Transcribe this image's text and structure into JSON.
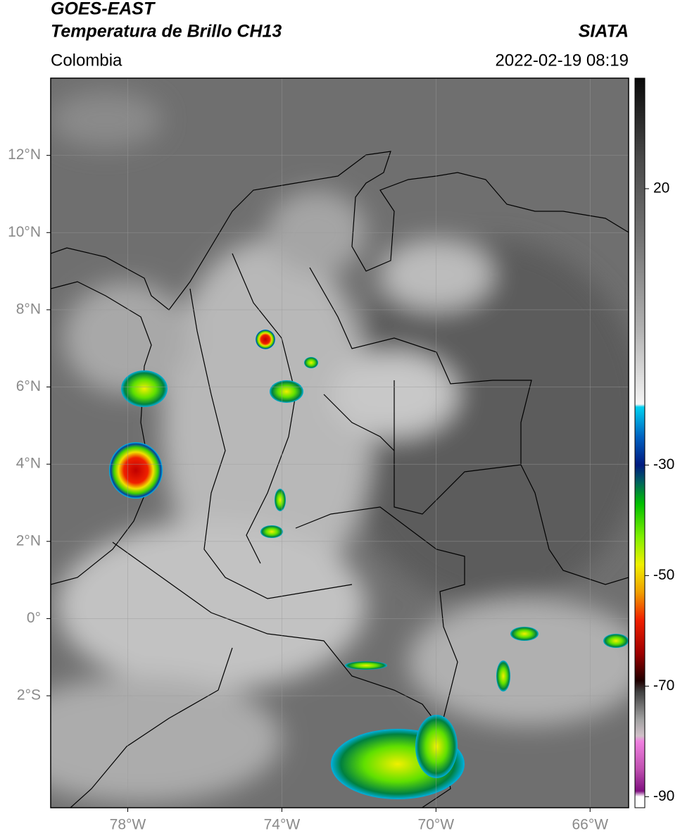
{
  "header": {
    "title": "GOES-EAST",
    "subtitle": "Temperatura de Brillo CH13",
    "source": "SIATA",
    "region": "Colombia",
    "timestamp": "2022-02-19 08:19"
  },
  "map": {
    "xlim": [
      -80,
      -65
    ],
    "ylim": [
      -4.9,
      14
    ],
    "xticks": [
      {
        "value": -78,
        "label": "78°W"
      },
      {
        "value": -74,
        "label": "74°W"
      },
      {
        "value": -70,
        "label": "70°W"
      },
      {
        "value": -66,
        "label": "66°W"
      }
    ],
    "yticks": [
      {
        "value": 12,
        "label": "12°N"
      },
      {
        "value": 10,
        "label": "10°N"
      },
      {
        "value": 8,
        "label": "8°N"
      },
      {
        "value": 6,
        "label": "6°N"
      },
      {
        "value": 4,
        "label": "4°N"
      },
      {
        "value": 2,
        "label": "2°N"
      },
      {
        "value": 0,
        "label": "0°"
      },
      {
        "value": -2,
        "label": "2°S"
      }
    ],
    "grid": true
  },
  "colorbar": {
    "clim": [
      -92,
      40
    ],
    "ticks": [
      20,
      -30,
      -50,
      -70,
      -90
    ],
    "colormap": [
      {
        "value": 40,
        "color": "#0a0a0a"
      },
      {
        "value": 25,
        "color": "#4a4a4a"
      },
      {
        "value": 10,
        "color": "#777777"
      },
      {
        "value": -5,
        "color": "#b0b0b0"
      },
      {
        "value": -19,
        "color": "#f5f5f5"
      },
      {
        "value": -19.5,
        "color": "#00d0f0"
      },
      {
        "value": -25,
        "color": "#0060c0"
      },
      {
        "value": -30,
        "color": "#001a80"
      },
      {
        "value": -33,
        "color": "#006060"
      },
      {
        "value": -37,
        "color": "#00c000"
      },
      {
        "value": -43,
        "color": "#80f000"
      },
      {
        "value": -48,
        "color": "#f0f000"
      },
      {
        "value": -53,
        "color": "#f0a000"
      },
      {
        "value": -58,
        "color": "#f02000"
      },
      {
        "value": -64,
        "color": "#a00000"
      },
      {
        "value": -69,
        "color": "#200000"
      },
      {
        "value": -71,
        "color": "#404040"
      },
      {
        "value": -76,
        "color": "#a0a0a0"
      },
      {
        "value": -79,
        "color": "#d0c0c8"
      },
      {
        "value": -80,
        "color": "#f080e0"
      },
      {
        "value": -85,
        "color": "#c050b0"
      },
      {
        "value": -89,
        "color": "#801080"
      },
      {
        "value": -90,
        "color": "#ffffff"
      },
      {
        "value": -92,
        "color": "#ffffff"
      }
    ]
  }
}
